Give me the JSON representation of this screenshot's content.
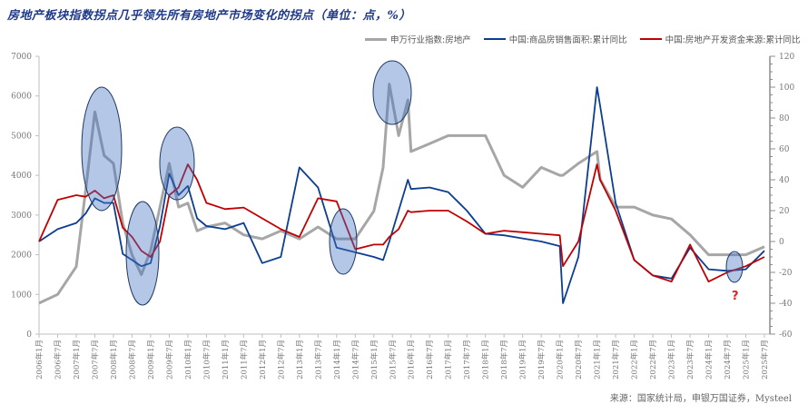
{
  "title": "房地产板块指数拐点几乎领先所有房地产市场变化的拐点（单位：点，%）",
  "legend": [
    {
      "label": "申万行业指数:房地产",
      "color": "#a6a6a6"
    },
    {
      "label": "中国:商品房销售面积:累计同比",
      "color": "#0b3d91"
    },
    {
      "label": "中国:房地产开发资金来源:累计同比",
      "color": "#c00000"
    }
  ],
  "source": "来源：国家统计局，申银万国证券，Mysteel",
  "annotation": "?",
  "chart_data": {
    "type": "line",
    "title": "房地产板块指数拐点几乎领先所有房地产市场变化的拐点（单位：点，%）",
    "xlabel": "",
    "ylabel_left": "点",
    "ylabel_right": "%",
    "ylim_left": [
      0,
      7000
    ],
    "ylim_right": [
      -60,
      120
    ],
    "yticks_left": [
      0,
      1000,
      2000,
      3000,
      4000,
      5000,
      6000,
      7000
    ],
    "yticks_right": [
      -60,
      -40,
      -20,
      0,
      20,
      40,
      60,
      80,
      100,
      120
    ],
    "xticks": [
      "2006年1月",
      "2006年7月",
      "2007年1月",
      "2007年7月",
      "2008年1月",
      "2008年7月",
      "2009年1月",
      "2009年7月",
      "2010年1月",
      "2010年7月",
      "2011年1月",
      "2011年7月",
      "2012年1月",
      "2012年7月",
      "2013年1月",
      "2013年7月",
      "2014年1月",
      "2014年7月",
      "2015年1月",
      "2015年7月",
      "2016年1月",
      "2016年7月",
      "2017年1月",
      "2017年7月",
      "2018年1月",
      "2018年7月",
      "2019年1月",
      "2019年7月",
      "2020年1月",
      "2020年7月",
      "2021年1月",
      "2021年7月",
      "2022年1月",
      "2022年7月",
      "2023年1月",
      "2023年7月",
      "2024年1月",
      "2024年7月",
      "2025年1月",
      "2025年7月"
    ],
    "grid": false,
    "legend_position": "top-right",
    "x": [
      "2006-01",
      "2006-07",
      "2007-01",
      "2007-04",
      "2007-07",
      "2007-10",
      "2008-01",
      "2008-04",
      "2008-07",
      "2008-10",
      "2009-01",
      "2009-04",
      "2009-07",
      "2009-10",
      "2010-01",
      "2010-04",
      "2010-07",
      "2011-01",
      "2011-07",
      "2012-01",
      "2012-07",
      "2013-01",
      "2013-07",
      "2014-01",
      "2014-07",
      "2015-01",
      "2015-04",
      "2015-06",
      "2015-09",
      "2015-12",
      "2016-01",
      "2016-07",
      "2017-01",
      "2017-07",
      "2018-01",
      "2018-07",
      "2019-01",
      "2019-07",
      "2020-01",
      "2020-02",
      "2020-07",
      "2021-01",
      "2021-02",
      "2021-07",
      "2022-01",
      "2022-07",
      "2023-01",
      "2023-07",
      "2024-01",
      "2024-07",
      "2025-01",
      "2025-07"
    ],
    "series": [
      {
        "name": "申万行业指数:房地产",
        "axis": "left",
        "values": [
          780,
          1000,
          1700,
          3600,
          5600,
          4500,
          4300,
          2800,
          2000,
          1500,
          2100,
          3200,
          4300,
          3200,
          3300,
          2600,
          2700,
          2800,
          2500,
          2400,
          2600,
          2400,
          2700,
          2400,
          2400,
          3100,
          4200,
          6300,
          5000,
          5900,
          4600,
          4800,
          5000,
          5000,
          5000,
          4000,
          3700,
          4200,
          4000,
          4000,
          4300,
          4600,
          3900,
          3200,
          3200,
          3000,
          2900,
          2500,
          2000,
          2000,
          2000,
          2200
        ]
      },
      {
        "name": "中国:商品房销售面积:累计同比",
        "axis": "right",
        "values": [
          0,
          8,
          12,
          18,
          28,
          25,
          25,
          -8,
          -12,
          -16,
          -14,
          10,
          44,
          30,
          36,
          15,
          10,
          8,
          12,
          -14,
          -10,
          48,
          35,
          -4,
          -7,
          -10,
          -12,
          0,
          20,
          40,
          34,
          35,
          32,
          20,
          5,
          4,
          2,
          0,
          -3,
          -40,
          -10,
          100,
          88,
          25,
          -12,
          -22,
          -24,
          -4,
          -18,
          -19,
          -18,
          -6
        ]
      },
      {
        "name": "中国:房地产开发资金来源:累计同比",
        "axis": "right",
        "values": [
          0,
          27,
          30,
          29,
          33,
          28,
          30,
          9,
          3,
          -6,
          -10,
          0,
          30,
          35,
          50,
          40,
          25,
          21,
          22,
          15,
          8,
          3,
          28,
          26,
          -5,
          -2,
          -2,
          3,
          8,
          20,
          19,
          20,
          20,
          13,
          5,
          7,
          6,
          5,
          4,
          -16,
          0,
          50,
          40,
          20,
          -12,
          -22,
          -26,
          -2,
          -26,
          -20,
          -16,
          -10
        ]
      }
    ],
    "highlight_ellipses": [
      "2007-07 peak",
      "2008-12 trough",
      "2009-11 peak",
      "2014-03 trough",
      "2015-06 peak",
      "2024-07 (?)"
    ]
  }
}
